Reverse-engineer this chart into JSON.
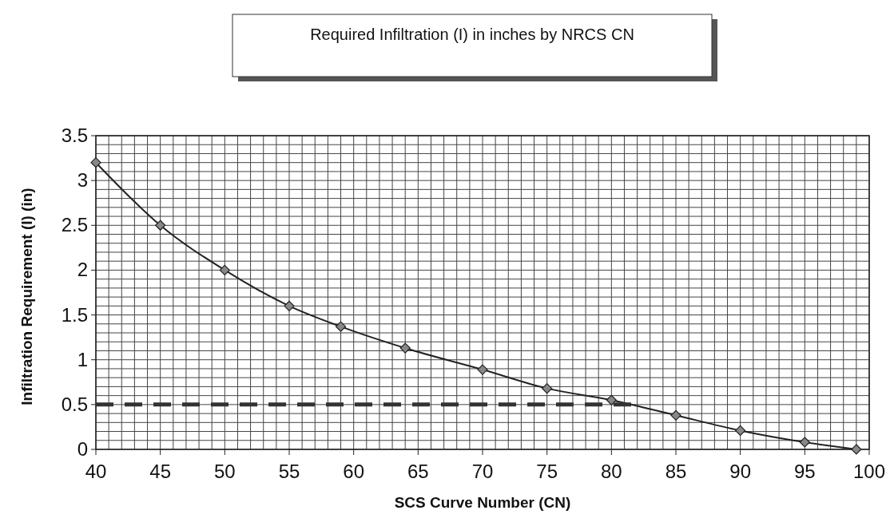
{
  "chart_data": {
    "type": "line",
    "title": "Required Infiltration (I) in inches by NRCS CN",
    "xlabel": "SCS Curve Number (CN)",
    "ylabel": "Infiltration Requirement (I) (in)",
    "series": [
      {
        "color": "#222222",
        "marker": "diamond",
        "x": [
          40,
          45,
          50,
          55,
          59,
          64,
          70,
          75,
          80,
          85,
          90,
          95,
          99
        ],
        "values": [
          3.2,
          2.5,
          2.0,
          1.6,
          1.37,
          1.13,
          0.89,
          0.68,
          0.55,
          0.38,
          0.21,
          0.08,
          0
        ]
      },
      {
        "color": "#333333",
        "marker": "none",
        "line_style": "dashed",
        "x": [
          40,
          82
        ],
        "values": [
          0.5,
          0.5
        ]
      }
    ],
    "xlim": [
      40,
      100
    ],
    "xticks": [
      40,
      45,
      50,
      55,
      60,
      65,
      70,
      75,
      80,
      85,
      90,
      95,
      100
    ],
    "ylim": [
      0,
      3.5
    ],
    "yticks": [
      0,
      0.5,
      1,
      1.5,
      2,
      2.5,
      3,
      3.5
    ],
    "grid": true
  }
}
